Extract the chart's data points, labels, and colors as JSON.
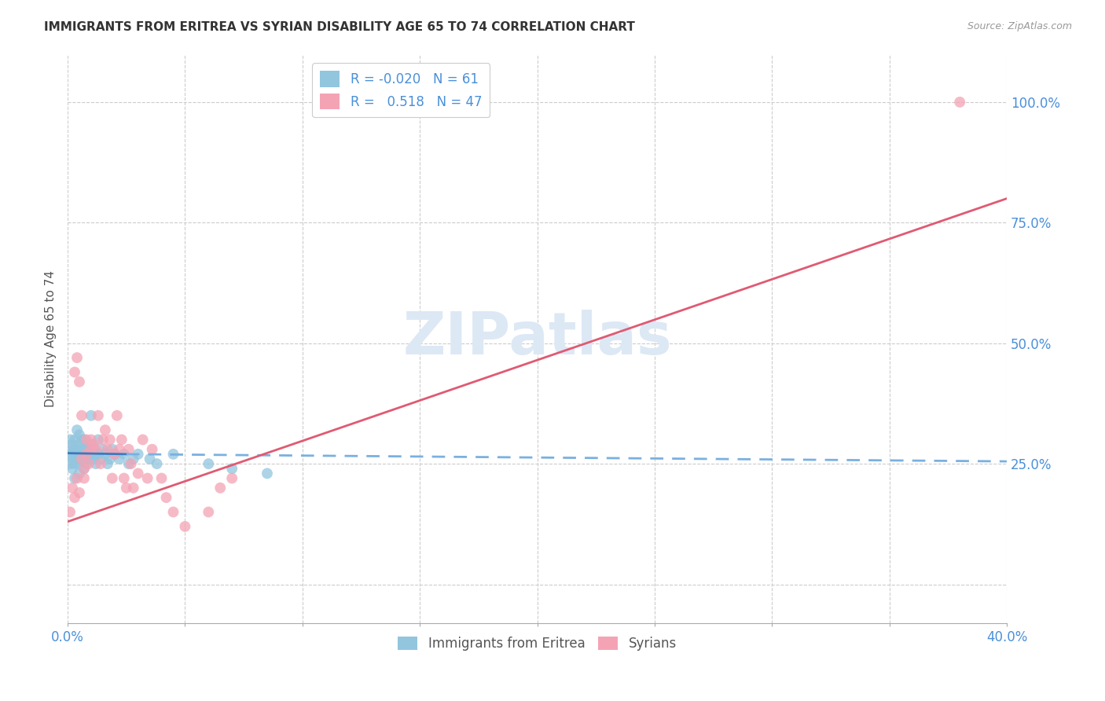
{
  "title": "IMMIGRANTS FROM ERITREA VS SYRIAN DISABILITY AGE 65 TO 74 CORRELATION CHART",
  "source": "Source: ZipAtlas.com",
  "ylabel": "Disability Age 65 to 74",
  "right_yticks": [
    0.0,
    0.25,
    0.5,
    0.75,
    1.0
  ],
  "right_yticklabels": [
    "",
    "25.0%",
    "50.0%",
    "75.0%",
    "100.0%"
  ],
  "xlim": [
    0.0,
    0.4
  ],
  "ylim": [
    -0.08,
    1.1
  ],
  "legend_eritrea_R": "-0.020",
  "legend_eritrea_N": "61",
  "legend_syrian_R": "0.518",
  "legend_syrian_N": "47",
  "color_eritrea": "#92c5de",
  "color_syrian": "#f4a3b5",
  "color_eritrea_line_solid": "#3a7abf",
  "color_eritrea_line_dashed": "#7ab0e0",
  "color_syrian_line": "#e05a72",
  "color_grid": "#cccccc",
  "color_title": "#333333",
  "color_axis_label": "#4a90d9",
  "watermark_text": "ZIPatlas",
  "watermark_color": "#dde8f5",
  "background_color": "#ffffff",
  "eritrea_scatter": {
    "x": [
      0.001,
      0.001,
      0.001,
      0.002,
      0.002,
      0.002,
      0.002,
      0.003,
      0.003,
      0.003,
      0.003,
      0.003,
      0.004,
      0.004,
      0.004,
      0.004,
      0.005,
      0.005,
      0.005,
      0.005,
      0.005,
      0.006,
      0.006,
      0.006,
      0.006,
      0.007,
      0.007,
      0.007,
      0.007,
      0.008,
      0.008,
      0.008,
      0.009,
      0.009,
      0.01,
      0.01,
      0.01,
      0.011,
      0.011,
      0.012,
      0.012,
      0.013,
      0.013,
      0.014,
      0.015,
      0.016,
      0.017,
      0.018,
      0.019,
      0.02,
      0.022,
      0.024,
      0.026,
      0.028,
      0.03,
      0.035,
      0.038,
      0.045,
      0.06,
      0.07,
      0.085
    ],
    "y": [
      0.27,
      0.25,
      0.3,
      0.26,
      0.28,
      0.24,
      0.29,
      0.25,
      0.27,
      0.28,
      0.22,
      0.3,
      0.26,
      0.28,
      0.27,
      0.32,
      0.25,
      0.27,
      0.29,
      0.23,
      0.31,
      0.27,
      0.26,
      0.28,
      0.3,
      0.26,
      0.28,
      0.3,
      0.24,
      0.27,
      0.29,
      0.25,
      0.28,
      0.26,
      0.35,
      0.27,
      0.29,
      0.26,
      0.28,
      0.27,
      0.25,
      0.3,
      0.27,
      0.26,
      0.28,
      0.27,
      0.25,
      0.26,
      0.28,
      0.27,
      0.26,
      0.27,
      0.25,
      0.26,
      0.27,
      0.26,
      0.25,
      0.27,
      0.25,
      0.24,
      0.23
    ]
  },
  "syrian_scatter": {
    "x": [
      0.001,
      0.002,
      0.003,
      0.003,
      0.004,
      0.004,
      0.005,
      0.005,
      0.006,
      0.006,
      0.007,
      0.007,
      0.008,
      0.008,
      0.009,
      0.01,
      0.01,
      0.011,
      0.012,
      0.013,
      0.014,
      0.015,
      0.016,
      0.017,
      0.018,
      0.019,
      0.02,
      0.021,
      0.022,
      0.023,
      0.024,
      0.025,
      0.026,
      0.027,
      0.028,
      0.03,
      0.032,
      0.034,
      0.036,
      0.04,
      0.042,
      0.045,
      0.05,
      0.06,
      0.065,
      0.07,
      0.38
    ],
    "y": [
      0.15,
      0.2,
      0.18,
      0.44,
      0.47,
      0.22,
      0.42,
      0.19,
      0.35,
      0.26,
      0.22,
      0.24,
      0.27,
      0.3,
      0.25,
      0.3,
      0.28,
      0.29,
      0.28,
      0.35,
      0.25,
      0.3,
      0.32,
      0.28,
      0.3,
      0.22,
      0.27,
      0.35,
      0.28,
      0.3,
      0.22,
      0.2,
      0.28,
      0.25,
      0.2,
      0.23,
      0.3,
      0.22,
      0.28,
      0.22,
      0.18,
      0.15,
      0.12,
      0.15,
      0.2,
      0.22,
      1.0
    ]
  },
  "eritrea_line_solid": {
    "x0": 0.0,
    "x1": 0.025,
    "y0": 0.272,
    "y1": 0.27
  },
  "eritrea_line_dashed": {
    "x0": 0.025,
    "x1": 0.4,
    "y0": 0.27,
    "y1": 0.255
  },
  "syrian_line": {
    "x0": 0.0,
    "x1": 0.4,
    "y0": 0.13,
    "y1": 0.8
  }
}
